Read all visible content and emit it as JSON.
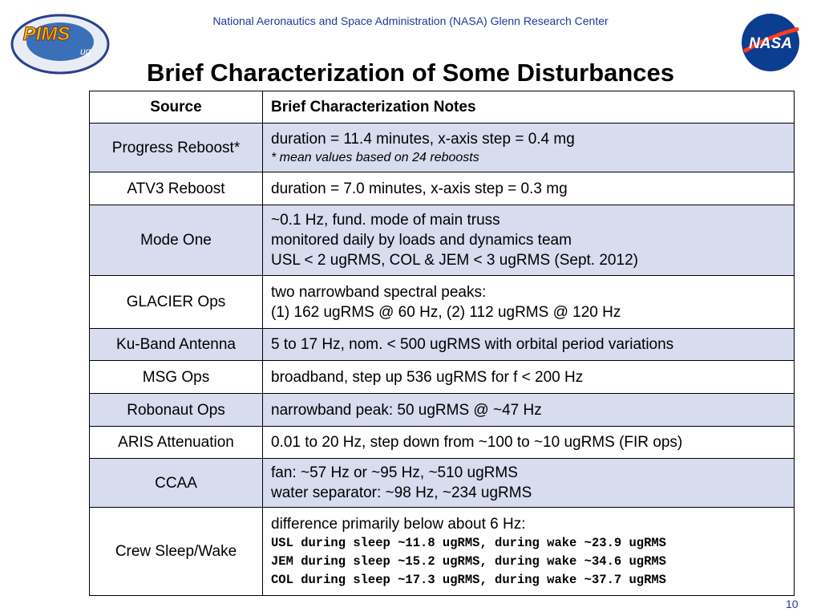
{
  "header": {
    "organization": "National Aeronautics and Space Administration (NASA) Glenn Research Center",
    "title": "Brief Characterization of Some Disturbances",
    "page_number": "10"
  },
  "logos": {
    "pims": "PIMS",
    "pims_sub": "ug",
    "nasa": "NASA"
  },
  "table": {
    "columns": [
      "Source",
      "Brief Characterization Notes"
    ],
    "rows": [
      {
        "source": "Progress Reboost*",
        "notes": [
          "duration = 11.4 minutes, x-axis step = 0.4 mg",
          "* mean values based on 24 reboosts"
        ]
      },
      {
        "source": "ATV3 Reboost",
        "notes": [
          "duration = 7.0 minutes, x-axis step = 0.3 mg"
        ]
      },
      {
        "source": "Mode One",
        "notes": [
          "~0.1 Hz, fund. mode of main truss",
          "monitored daily by loads and dynamics team",
          "USL < 2 ugRMS,  COL & JEM < 3 ugRMS (Sept. 2012)"
        ]
      },
      {
        "source": "GLACIER Ops",
        "notes": [
          "two narrowband spectral peaks:",
          "(1) 162 ugRMS @ 60 Hz, (2) 112 ugRMS @ 120 Hz"
        ]
      },
      {
        "source": "Ku-Band Antenna",
        "notes": [
          "5 to 17 Hz, nom. < 500 ugRMS with orbital period variations"
        ]
      },
      {
        "source": "MSG Ops",
        "notes": [
          "broadband, step up 536 ugRMS for f < 200 Hz"
        ]
      },
      {
        "source": "Robonaut Ops",
        "notes": [
          "narrowband peak: 50 ugRMS @ ~47 Hz"
        ]
      },
      {
        "source": "ARIS Attenuation",
        "notes": [
          "0.01 to 20 Hz, step down from ~100 to ~10 ugRMS (FIR ops)"
        ]
      },
      {
        "source": "CCAA",
        "notes": [
          "fan:    ~57 Hz or ~95 Hz, ~510 ugRMS",
          "water separator: ~98 Hz, ~234 ugRMS"
        ]
      },
      {
        "source": "Crew Sleep/Wake",
        "notes": [
          "difference primarily below about 6 Hz:",
          "USL during sleep ~11.8 ugRMS, during wake ~23.9 ugRMS",
          "JEM during sleep ~15.2 ugRMS, during wake ~34.6 ugRMS",
          "COL during sleep ~17.3 ugRMS, during wake ~37.7 ugRMS"
        ]
      }
    ]
  }
}
